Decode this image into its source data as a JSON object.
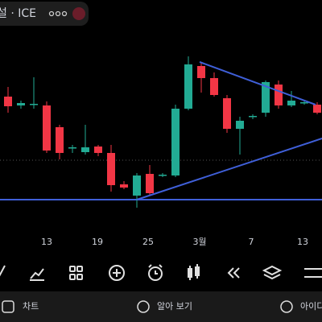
{
  "header": {
    "symbol": "설 · ICE"
  },
  "chart_data": {
    "type": "candlestick",
    "ylim": [
      0,
      250
    ],
    "up_color": "#22ab94",
    "down_color": "#f23645",
    "x_labels": [
      "13",
      "19",
      "25",
      "3월",
      "7",
      "13"
    ],
    "candles": [
      {
        "open": 170,
        "high": 182,
        "low": 150,
        "close": 158
      },
      {
        "open": 159,
        "high": 165,
        "low": 155,
        "close": 162
      },
      {
        "open": 160,
        "high": 194,
        "low": 155,
        "close": 161
      },
      {
        "open": 159,
        "high": 164,
        "low": 100,
        "close": 103
      },
      {
        "open": 132,
        "high": 135,
        "low": 92,
        "close": 100
      },
      {
        "open": 106,
        "high": 110,
        "low": 100,
        "close": 107
      },
      {
        "open": 101,
        "high": 135,
        "low": 98,
        "close": 107
      },
      {
        "open": 108,
        "high": 110,
        "low": 96,
        "close": 100
      },
      {
        "open": 100,
        "high": 110,
        "low": 52,
        "close": 60
      },
      {
        "open": 61,
        "high": 65,
        "low": 55,
        "close": 57
      },
      {
        "open": 47,
        "high": 75,
        "low": 32,
        "close": 72
      },
      {
        "open": 74,
        "high": 85,
        "low": 47,
        "close": 50
      },
      {
        "open": 72,
        "high": 75,
        "low": 70,
        "close": 73
      },
      {
        "open": 72,
        "high": 160,
        "low": 70,
        "close": 155
      },
      {
        "open": 155,
        "high": 220,
        "low": 153,
        "close": 210
      },
      {
        "open": 208,
        "high": 213,
        "low": 175,
        "close": 193
      },
      {
        "open": 193,
        "high": 200,
        "low": 170,
        "close": 172
      },
      {
        "open": 168,
        "high": 172,
        "low": 125,
        "close": 130
      },
      {
        "open": 130,
        "high": 145,
        "low": 98,
        "close": 140
      },
      {
        "open": 145,
        "high": 148,
        "low": 142,
        "close": 146
      },
      {
        "open": 150,
        "high": 190,
        "low": 145,
        "close": 188
      },
      {
        "open": 185,
        "high": 190,
        "low": 155,
        "close": 159
      },
      {
        "open": 159,
        "high": 177,
        "low": 157,
        "close": 165
      },
      {
        "open": 162,
        "high": 165,
        "low": 160,
        "close": 163
      },
      {
        "open": 160,
        "high": 163,
        "low": 148,
        "close": 150
      }
    ]
  },
  "nav": {
    "chart": "차트",
    "explore": "알아 보기",
    "ideas": "아이디"
  }
}
